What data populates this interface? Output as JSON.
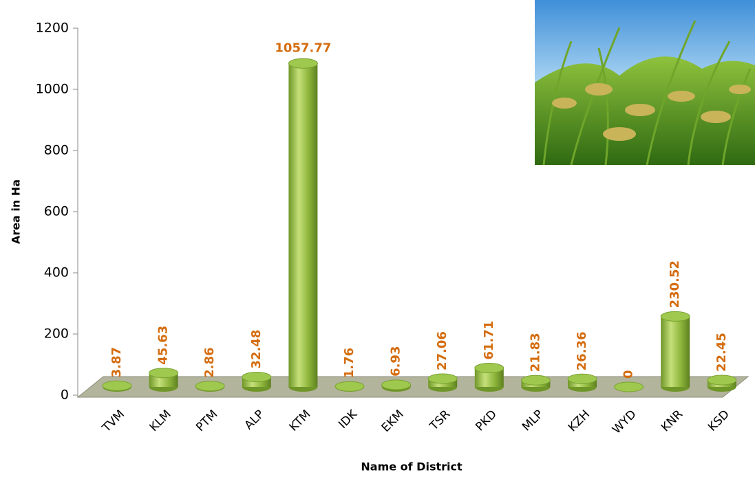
{
  "chart_data": {
    "type": "bar",
    "x_label": "Name of District",
    "y_label": "Area in Ha",
    "categories": [
      "TVM",
      "KLM",
      "PTM",
      "ALP",
      "KTM",
      "IDK",
      "EKM",
      "TSR",
      "PKD",
      "MLP",
      "KZH",
      "WYD",
      "KNR",
      "KSD"
    ],
    "values": [
      3.87,
      45.63,
      2.86,
      32.48,
      1057.77,
      1.76,
      6.93,
      27.06,
      61.71,
      21.83,
      26.36,
      0,
      230.52,
      22.45
    ],
    "color": "#8cb43a",
    "ylim": [
      0,
      1200
    ],
    "yticks": [
      0,
      200,
      400,
      600,
      800,
      1000,
      1200
    ]
  }
}
